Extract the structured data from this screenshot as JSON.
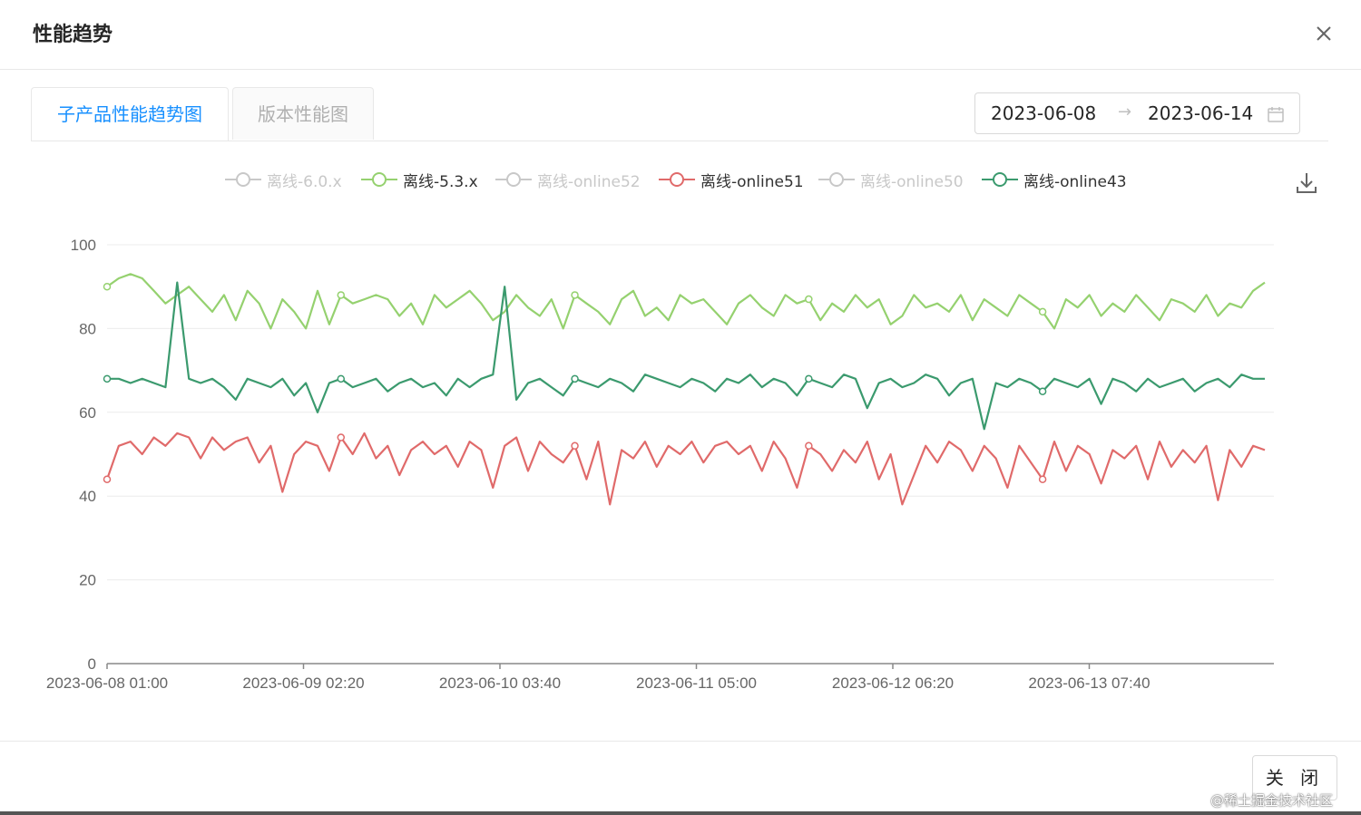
{
  "dialog": {
    "title": "性能趋势",
    "close_label": "关 闭",
    "watermark": "@稀土掘金技术社区"
  },
  "tabs": [
    {
      "label": "子产品性能趋势图",
      "active": true
    },
    {
      "label": "版本性能图",
      "active": false
    }
  ],
  "date_range": {
    "start": "2023-06-08",
    "separator": "→",
    "end": "2023-06-14"
  },
  "icons": {
    "close": "close-icon",
    "calendar": "calendar-icon",
    "download": "download-icon"
  },
  "chart_data": {
    "type": "line",
    "title": "",
    "xlabel": "",
    "ylabel": "",
    "ylim": [
      0,
      100
    ],
    "yticks": [
      0,
      20,
      40,
      60,
      80,
      100
    ],
    "x_tick_labels": [
      "2023-06-08 01:00",
      "2023-06-09 02:20",
      "2023-06-10 03:40",
      "2023-06-11 05:00",
      "2023-06-12 06:20",
      "2023-06-13 07:40"
    ],
    "grid": true,
    "legend_position": "top",
    "series": [
      {
        "name": "离线-6.0.x",
        "color": "#c8c8c8",
        "visible": false,
        "values": []
      },
      {
        "name": "离线-5.3.x",
        "color": "#95d16f",
        "visible": true,
        "values": [
          90,
          92,
          93,
          92,
          89,
          86,
          88,
          90,
          87,
          84,
          88,
          82,
          89,
          86,
          80,
          87,
          84,
          80,
          89,
          81,
          88,
          86,
          87,
          88,
          87,
          83,
          86,
          81,
          88,
          85,
          87,
          89,
          86,
          82,
          84,
          88,
          85,
          83,
          87,
          80,
          88,
          86,
          84,
          81,
          87,
          89,
          83,
          85,
          82,
          88,
          86,
          87,
          84,
          81,
          86,
          88,
          85,
          83,
          88,
          86,
          87,
          82,
          86,
          84,
          88,
          85,
          87,
          81,
          83,
          88,
          85,
          86,
          84,
          88,
          82,
          87,
          85,
          83,
          88,
          86,
          84,
          80,
          87,
          85,
          88,
          83,
          86,
          84,
          88,
          85,
          82,
          87,
          86,
          84,
          88,
          83,
          86,
          85,
          89,
          91
        ]
      },
      {
        "name": "离线-online52",
        "color": "#c8c8c8",
        "visible": false,
        "values": []
      },
      {
        "name": "离线-online51",
        "color": "#e06a6a",
        "visible": true,
        "values": [
          44,
          52,
          53,
          50,
          54,
          52,
          55,
          54,
          49,
          54,
          51,
          53,
          54,
          48,
          52,
          41,
          50,
          53,
          52,
          46,
          54,
          50,
          55,
          49,
          52,
          45,
          51,
          53,
          50,
          52,
          47,
          53,
          51,
          42,
          52,
          54,
          46,
          53,
          50,
          48,
          52,
          44,
          53,
          38,
          51,
          49,
          53,
          47,
          52,
          50,
          53,
          48,
          52,
          53,
          50,
          52,
          46,
          53,
          49,
          42,
          52,
          50,
          46,
          51,
          48,
          53,
          44,
          50,
          38,
          45,
          52,
          48,
          53,
          51,
          46,
          52,
          49,
          42,
          52,
          48,
          44,
          53,
          46,
          52,
          50,
          43,
          51,
          49,
          52,
          44,
          53,
          47,
          51,
          48,
          52,
          39,
          51,
          47,
          52,
          51
        ]
      },
      {
        "name": "离线-online50",
        "color": "#c8c8c8",
        "visible": false,
        "values": []
      },
      {
        "name": "离线-online43",
        "color": "#3b9a6e",
        "visible": true,
        "values": [
          68,
          68,
          67,
          68,
          67,
          66,
          91,
          68,
          67,
          68,
          66,
          63,
          68,
          67,
          66,
          68,
          64,
          67,
          60,
          67,
          68,
          66,
          67,
          68,
          65,
          67,
          68,
          66,
          67,
          64,
          68,
          66,
          68,
          69,
          90,
          63,
          67,
          68,
          66,
          64,
          68,
          67,
          66,
          68,
          67,
          65,
          69,
          68,
          67,
          66,
          68,
          67,
          65,
          68,
          67,
          69,
          66,
          68,
          67,
          64,
          68,
          67,
          66,
          69,
          68,
          61,
          67,
          68,
          66,
          67,
          69,
          68,
          64,
          67,
          68,
          56,
          67,
          66,
          68,
          67,
          65,
          68,
          67,
          66,
          68,
          62,
          68,
          67,
          65,
          68,
          66,
          67,
          68,
          65,
          67,
          68,
          66,
          69,
          68,
          68
        ]
      }
    ]
  }
}
